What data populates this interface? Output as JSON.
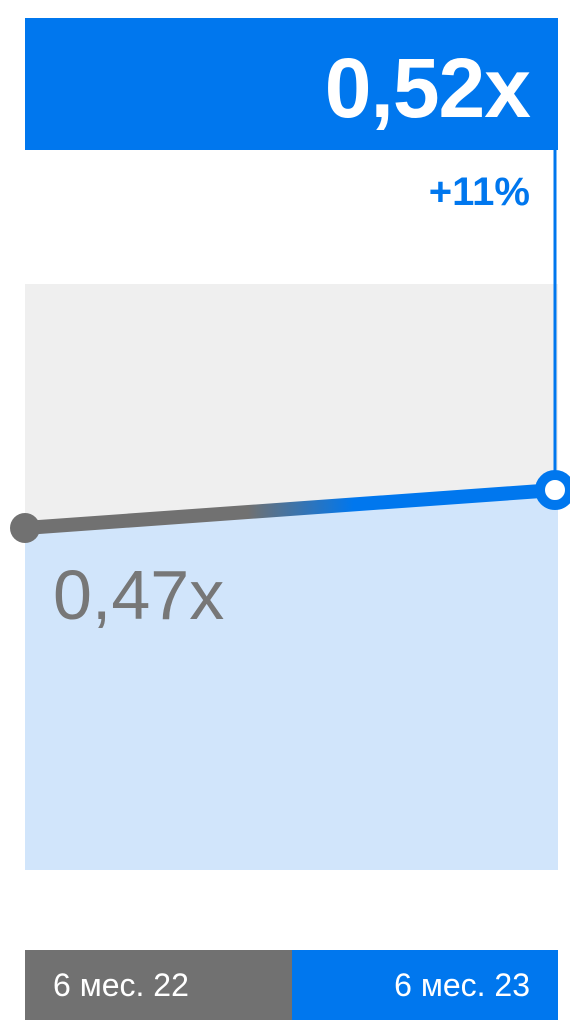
{
  "chart_data": {
    "type": "line",
    "categories": [
      "6 мес. 22",
      "6 мес. 23"
    ],
    "values": [
      0.47,
      0.52
    ],
    "value_labels": [
      "0,47x",
      "0,52x"
    ],
    "change_label": "+11%",
    "colors": {
      "previous": "#717171",
      "current": "#0077EE",
      "fill": "#D1E5FB",
      "background_band": "#EFEFEF"
    }
  }
}
